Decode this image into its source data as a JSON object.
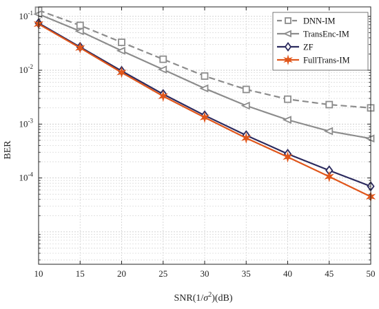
{
  "chart_data": {
    "type": "line",
    "xlabel_main": "SNR(1/",
    "xlabel_sigma": "σ",
    "xlabel_sup": "2",
    "xlabel_tail": ")(dB)",
    "ylabel": "BER",
    "y_scale": "log",
    "xlim": [
      10,
      50
    ],
    "ylim": [
      2.5e-06,
      0.15
    ],
    "x": [
      10,
      15,
      20,
      25,
      30,
      35,
      40,
      45,
      50
    ],
    "x_ticks": [
      "10",
      "15",
      "20",
      "25",
      "30",
      "35",
      "40",
      "45",
      "50"
    ],
    "y_ticks": [
      {
        "value": 0.1,
        "mantissa": "10",
        "exp": "-1"
      },
      {
        "value": 0.01,
        "mantissa": "10",
        "exp": "-2"
      },
      {
        "value": 0.001,
        "mantissa": "10",
        "exp": "-3"
      },
      {
        "value": 0.0001,
        "mantissa": "10",
        "exp": "-4"
      }
    ],
    "grid": true,
    "legend_position": "top-right",
    "series": [
      {
        "name": "DNN-IM",
        "color": "#8c8c8c",
        "dash": "dashed",
        "marker": "square",
        "values": [
          0.13,
          0.068,
          0.033,
          0.016,
          0.0078,
          0.0044,
          0.0029,
          0.0023,
          0.002
        ]
      },
      {
        "name": "TransEnc-IM",
        "color": "#8c8c8c",
        "dash": "solid",
        "marker": "triangle-left",
        "values": [
          0.11,
          0.053,
          0.023,
          0.0103,
          0.0046,
          0.0022,
          0.0012,
          0.00074,
          0.00054
        ]
      },
      {
        "name": "ZF",
        "color": "#2b2a5e",
        "dash": "solid",
        "marker": "diamond",
        "values": [
          0.075,
          0.027,
          0.0097,
          0.0036,
          0.00145,
          0.00062,
          0.00028,
          0.000138,
          7e-05
        ]
      },
      {
        "name": "FullTrans-IM",
        "color": "#e0561b",
        "dash": "solid",
        "marker": "star",
        "values": [
          0.072,
          0.026,
          0.0091,
          0.0033,
          0.00133,
          0.00055,
          0.000245,
          0.000106,
          4.5e-05
        ]
      }
    ]
  }
}
